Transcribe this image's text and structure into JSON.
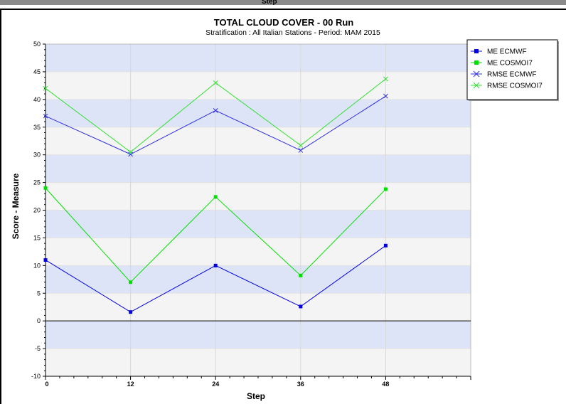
{
  "previous_chart": {
    "xlabel_fragment": "Step"
  },
  "chart_data": {
    "type": "line",
    "title": "TOTAL CLOUD COVER - 00 Run",
    "subtitle": "Stratification : All Italian Stations - Period: MAM 2015",
    "xlabel": "Step",
    "ylabel": "Score - Measure",
    "x": [
      0,
      12,
      24,
      36,
      48
    ],
    "x_ticks": [
      "0",
      "12",
      "24",
      "36",
      "48"
    ],
    "xlim": [
      0,
      60
    ],
    "ylim": [
      -10,
      50
    ],
    "y_ticks": [
      -10,
      -5,
      0,
      5,
      10,
      15,
      20,
      25,
      30,
      35,
      40,
      45,
      50
    ],
    "grid": true,
    "legend_position": "top-right",
    "series": [
      {
        "name": "ME ECMWF",
        "color": "#0000e0",
        "marker": "square",
        "values": [
          11.0,
          1.6,
          10.0,
          2.6,
          13.6
        ]
      },
      {
        "name": "ME COSMOI7",
        "color": "#00e000",
        "marker": "square",
        "values": [
          24.0,
          7.0,
          22.4,
          8.2,
          23.8
        ]
      },
      {
        "name": "RMSE ECMWF",
        "color": "#3030e0",
        "marker": "x",
        "values": [
          37.0,
          30.1,
          38.0,
          30.8,
          40.6
        ]
      },
      {
        "name": "RMSE COSMOI7",
        "color": "#30e030",
        "marker": "x",
        "values": [
          42.0,
          30.5,
          43.0,
          31.7,
          43.7
        ]
      }
    ],
    "band_colors": [
      "#dde4f7",
      "#f4f4f4"
    ]
  }
}
